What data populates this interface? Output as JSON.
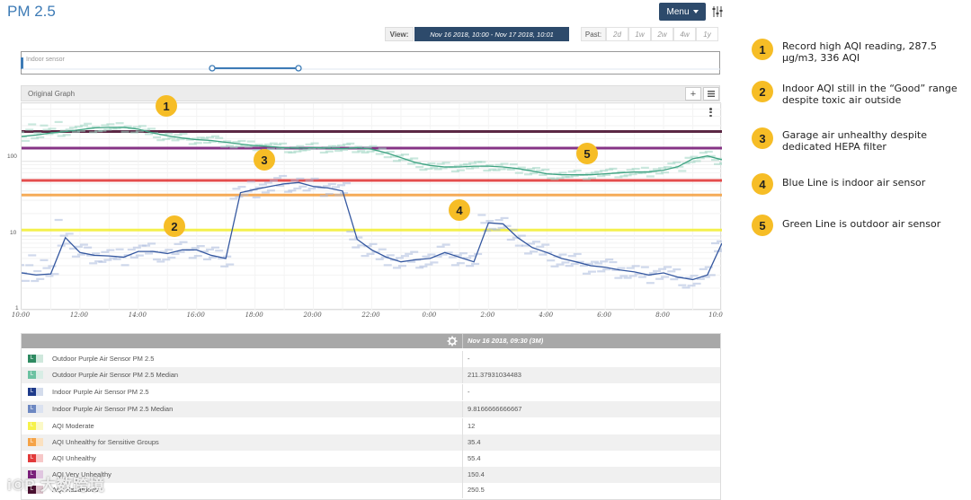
{
  "page": {
    "title": "PM 2.5"
  },
  "toolbar": {
    "menu_label": "Menu",
    "settings_icon": "sliders-icon"
  },
  "range": {
    "view_label": "View:",
    "view_value": "Nov 16 2018, 10:00  -  Nov 17 2018, 10:01",
    "past_label": "Past:",
    "past_options": [
      "2d",
      "1w",
      "2w",
      "4w",
      "1y"
    ]
  },
  "sensor_nav": {
    "label": "Indoor sensor"
  },
  "graph": {
    "header_label": "Original Graph",
    "zoom_in_label": "+",
    "list_icon": "list-icon",
    "kebab_icon": "kebab-menu-icon"
  },
  "chart_data": {
    "type": "line",
    "y_scale": "log",
    "ylim": [
      1,
      600
    ],
    "y_ticks": [
      "1",
      "10",
      "100"
    ],
    "x_ticks": [
      "10:00",
      "12:00",
      "14:00",
      "16:00",
      "18:00",
      "20:00",
      "22:00",
      "0:00",
      "2:00",
      "4:00",
      "6:00",
      "8:00",
      "10:0"
    ],
    "thresholds": [
      {
        "name": "AQI Moderate",
        "value": 12,
        "color": "#f3ef3a"
      },
      {
        "name": "AQI Unhealthy for Sensitive Groups",
        "value": 35.4,
        "color": "#f5a347"
      },
      {
        "name": "AQI Unhealthy",
        "value": 55.4,
        "color": "#e23a3a"
      },
      {
        "name": "AQI Very Unhealthy",
        "value": 150.4,
        "color": "#7a1f7a"
      },
      {
        "name": "AQI Hazardous",
        "value": 250.5,
        "color": "#4a1030"
      }
    ],
    "series": [
      {
        "name": "Outdoor Purple Air Sensor PM 2.5 Median",
        "color": "#3fa382",
        "x": [
          0,
          0.5,
          1,
          1.5,
          2,
          2.5,
          3,
          3.5,
          4,
          4.5,
          5,
          5.5,
          6,
          6.5,
          7,
          7.5,
          8,
          8.5,
          9,
          9.5,
          10,
          10.5,
          11,
          11.5,
          12,
          12.5,
          13,
          13.5,
          14,
          14.5,
          15,
          15.5,
          16,
          16.5,
          17,
          17.5,
          18,
          18.5,
          19,
          19.5,
          20,
          20.5,
          21,
          21.5,
          22,
          22.5,
          23,
          23.5,
          24
        ],
        "values": [
          215,
          225,
          240,
          250,
          265,
          280,
          285,
          285,
          270,
          240,
          220,
          205,
          195,
          190,
          180,
          170,
          162,
          158,
          152,
          150,
          153,
          150,
          148,
          152,
          145,
          130,
          112,
          96,
          88,
          84,
          84,
          86,
          86,
          84,
          80,
          74,
          68,
          66,
          66,
          66,
          68,
          70,
          72,
          72,
          76,
          85,
          108,
          118,
          105
        ]
      },
      {
        "name": "Indoor Purple Air Sensor PM 2.5 Median",
        "color": "#3558a0",
        "x": [
          0,
          0.5,
          1,
          1.5,
          2,
          2.5,
          3,
          3.5,
          4,
          4.5,
          5,
          5.5,
          6,
          6.5,
          7,
          7.5,
          8,
          8.5,
          9,
          9.5,
          10,
          10.5,
          11,
          11.5,
          12,
          12.5,
          13,
          13.5,
          14,
          14.5,
          15,
          15.5,
          16,
          16.5,
          17,
          17.5,
          18,
          18.5,
          19,
          19.5,
          20,
          20.5,
          21,
          21.5,
          22,
          22.5,
          23,
          23.5,
          24
        ],
        "values": [
          3.2,
          3.0,
          3.1,
          9.5,
          6.0,
          5.5,
          5.4,
          5.2,
          6.2,
          6.2,
          5.8,
          6.5,
          6.5,
          5.5,
          5.0,
          38,
          42,
          46,
          50,
          52,
          46,
          44,
          40,
          9,
          6.5,
          5.2,
          4.5,
          4.8,
          5.0,
          6.0,
          5.2,
          4.5,
          15.0,
          14.5,
          9.5,
          7.0,
          6.0,
          5.0,
          4.5,
          4.0,
          3.8,
          3.5,
          3.3,
          3.0,
          3.2,
          2.8,
          2.6,
          3.0,
          8.0
        ]
      }
    ],
    "annotations": [
      "1",
      "2",
      "3",
      "4",
      "5"
    ]
  },
  "legend": {
    "settings_icon": "gear-icon",
    "header_time": "Nov 16 2018, 09:30  (3M)",
    "rows": [
      {
        "label": "Outdoor Purple Air Sensor PM 2.5",
        "value": "-",
        "color": "#2e8a61",
        "color2": "#cfe8dc",
        "mark": "L"
      },
      {
        "label": "Outdoor Purple Air Sensor PM 2.5 Median",
        "value": "211.37931034483",
        "color": "#6bc2a2",
        "color2": "#d8ede5",
        "mark": "L"
      },
      {
        "label": "Indoor Purple Air Sensor PM 2.5",
        "value": "-",
        "color": "#1e3a8a",
        "color2": "#d4dcec",
        "mark": "L"
      },
      {
        "label": "Indoor Purple Air Sensor PM 2.5 Median",
        "value": "9.8166666666667",
        "color": "#6d88c2",
        "color2": "#dbe2f0",
        "mark": "L"
      },
      {
        "label": "AQI Moderate",
        "value": "12",
        "color": "#f6f24a",
        "color2": "#fbf9c7",
        "mark": "L"
      },
      {
        "label": "AQI Unhealthy for Sensitive Groups",
        "value": "35.4",
        "color": "#f5a347",
        "color2": "#fbe1c0",
        "mark": "L"
      },
      {
        "label": "AQI Unhealthy",
        "value": "55.4",
        "color": "#e23a3a",
        "color2": "#f7c8c8",
        "mark": "L"
      },
      {
        "label": "AQI Very Unhealthy",
        "value": "150.4",
        "color": "#7a1f7a",
        "color2": "#e0c6e0",
        "mark": "L"
      },
      {
        "label": "AQI Hazardous",
        "value": "250.5",
        "color": "#4a1030",
        "color2": "#dcc3cc",
        "mark": "L"
      }
    ]
  },
  "notes": [
    {
      "num": "1",
      "text": "Record high AQI reading, 287.5 µg/m3, 336 AQI"
    },
    {
      "num": "2",
      "text": "Indoor AQI still in the “Good” range despite toxic air outside"
    },
    {
      "num": "3",
      "text": "Garage air unhealthy despite dedicated HEPA filter"
    },
    {
      "num": "4",
      "text": "Blue Line is indoor air sensor"
    },
    {
      "num": "5",
      "text": "Green Line is outdoor air sensor"
    }
  ],
  "watermark": {
    "text": "i©P 大数跨境"
  }
}
